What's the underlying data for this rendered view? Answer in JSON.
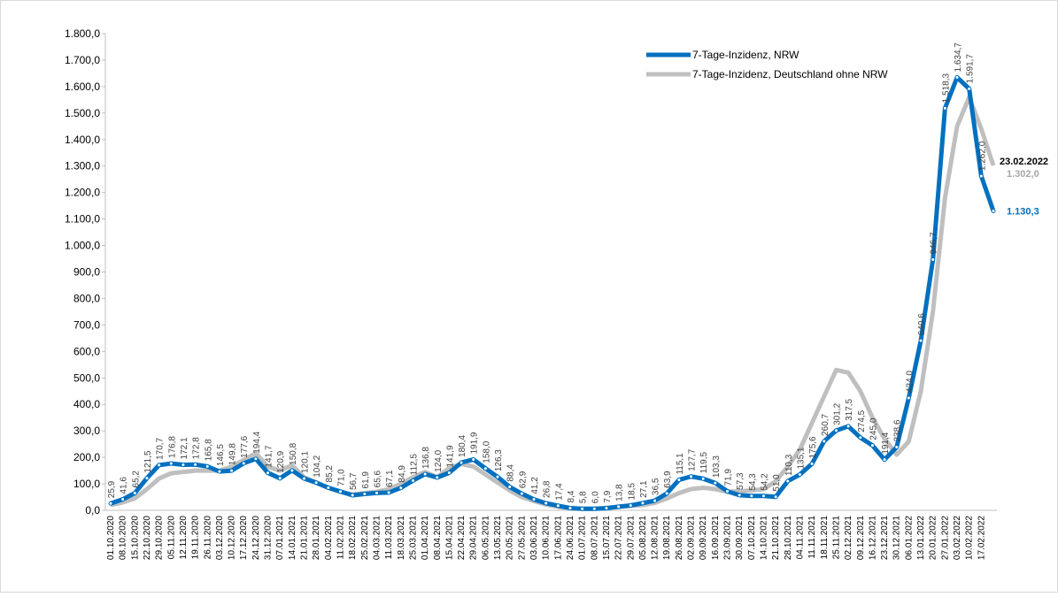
{
  "chart_data": {
    "type": "line",
    "categories": [
      "01.10.2020",
      "08.10.2020",
      "15.10.2020",
      "22.10.2020",
      "29.10.2020",
      "05.11.2020",
      "12.11.2020",
      "19.11.2020",
      "26.11.2020",
      "03.12.2020",
      "10.12.2020",
      "17.12.2020",
      "24.12.2020",
      "31.12.2020",
      "07.01.2021",
      "14.01.2021",
      "21.01.2021",
      "28.01.2021",
      "04.02.2021",
      "11.02.2021",
      "18.02.2021",
      "25.02.2021",
      "04.03.2021",
      "11.03.2021",
      "18.03.2021",
      "25.03.2021",
      "01.04.2021",
      "08.04.2021",
      "15.04.2021",
      "22.04.2021",
      "29.04.2021",
      "06.05.2021",
      "13.05.2021",
      "20.05.2021",
      "27.05.2021",
      "03.06.2021",
      "10.06.2021",
      "17.06.2021",
      "24.06.2021",
      "01.07.2021",
      "08.07.2021",
      "15.07.2021",
      "22.07.2021",
      "29.07.2021",
      "05.08.2021",
      "12.08.2021",
      "19.08.2021",
      "26.08.2021",
      "02.09.2021",
      "09.09.2021",
      "16.09.2021",
      "23.09.2021",
      "30.09.2021",
      "07.10.2021",
      "14.10.2021",
      "21.10.2021",
      "28.10.2021",
      "04.11.2021",
      "11.11.2021",
      "18.11.2021",
      "25.11.2021",
      "02.12.2021",
      "09.12.2021",
      "16.12.2021",
      "23.12.2021",
      "30.12.2021",
      "06.01.2022",
      "13.01.2022",
      "20.01.2022",
      "27.01.2022",
      "03.02.2022",
      "10.02.2022",
      "17.02.2022",
      null
    ],
    "series": [
      {
        "name": "7-Tage-Inzidenz, NRW",
        "color": "#0070c0",
        "values": [
          25.9,
          41.6,
          65.2,
          121.5,
          170.7,
          176.8,
          172.1,
          172.8,
          165.8,
          146.5,
          149.8,
          177.6,
          194.4,
          141.7,
          120.9,
          150.8,
          120.1,
          104.2,
          85.2,
          71.0,
          56.7,
          61.9,
          65.6,
          67.1,
          84.9,
          112.5,
          136.8,
          124.0,
          141.9,
          180.4,
          191.9,
          158.0,
          126.3,
          88.4,
          62.9,
          41.2,
          26.8,
          17.4,
          8.4,
          5.8,
          6.0,
          7.9,
          13.8,
          18.5,
          27.1,
          36.5,
          63.9,
          115.1,
          127.7,
          119.5,
          103.3,
          71.9,
          57.3,
          54.3,
          54.2,
          51.0,
          110.3,
          135.1,
          175.6,
          260.7,
          301.2,
          317.5,
          274.5,
          245.0,
          191.4,
          238.6,
          424.0,
          640.6,
          946.7,
          1518.3,
          1634.7,
          1591.7,
          1262.0,
          1130.3
        ],
        "value_labels": [
          "25,9",
          "41,6",
          "65,2",
          "121,5",
          "170,7",
          "176,8",
          "172,1",
          "172,8",
          "165,8",
          "146,5",
          "149,8",
          "177,6",
          "194,4",
          "141,7",
          "120,9",
          "150,8",
          "120,1",
          "104,2",
          "85,2",
          "71,0",
          "56,7",
          "61,9",
          "65,6",
          "67,1",
          "84,9",
          "112,5",
          "136,8",
          "124,0",
          "141,9",
          "180,4",
          "191,9",
          "158,0",
          "126,3",
          "88,4",
          "62,9",
          "41,2",
          "26,8",
          "17,4",
          "8,4",
          "5,8",
          "6,0",
          "7,9",
          "13,8",
          "18,5",
          "27,1",
          "36,5",
          "63,9",
          "115,1",
          "127,7",
          "119,5",
          "103,3",
          "71,9",
          "57,3",
          "54,3",
          "54,2",
          "51,0",
          "110,3",
          "135,1",
          "175,6",
          "260,7",
          "301,2",
          "317,5",
          "274,5",
          "245,0",
          "191,4",
          "238,6",
          "424,0",
          "640,6",
          "946,7",
          "1.518,3",
          "1.634,7",
          "1.591,7",
          "1.262,0",
          "1.130,3"
        ]
      },
      {
        "name": "7-Tage-Inzidenz, Deutschland ohne NRW",
        "color": "#bfbfbf",
        "values": [
          20,
          30,
          45,
          80,
          120,
          140,
          145,
          150,
          150,
          150,
          165,
          190,
          215,
          165,
          150,
          170,
          125,
          105,
          85,
          70,
          60,
          65,
          70,
          80,
          100,
          125,
          145,
          125,
          160,
          175,
          165,
          135,
          105,
          75,
          50,
          35,
          22,
          13,
          8,
          6,
          6,
          9,
          13,
          17,
          20,
          28,
          45,
          65,
          80,
          85,
          80,
          70,
          72,
          75,
          80,
          110,
          165,
          230,
          330,
          430,
          530,
          520,
          450,
          350,
          270,
          210,
          260,
          450,
          750,
          1180,
          1450,
          1560,
          1440,
          1302.0
        ],
        "value_labels": [
          null,
          null,
          null,
          null,
          null,
          null,
          null,
          null,
          null,
          null,
          null,
          null,
          null,
          null,
          null,
          null,
          null,
          null,
          null,
          null,
          null,
          null,
          null,
          null,
          null,
          null,
          null,
          null,
          null,
          null,
          null,
          null,
          null,
          null,
          null,
          null,
          null,
          null,
          null,
          null,
          null,
          null,
          null,
          null,
          null,
          null,
          null,
          null,
          null,
          null,
          null,
          null,
          null,
          null,
          null,
          null,
          null,
          null,
          null,
          null,
          null,
          null,
          null,
          null,
          null,
          null,
          null,
          null,
          null,
          null,
          null,
          null,
          null,
          "1.302,0"
        ]
      }
    ],
    "annotation": "23.02.2022",
    "ylim": [
      0,
      1800
    ],
    "yticks": [
      {
        "value": 0,
        "label": "0,0"
      },
      {
        "value": 100,
        "label": "100,0"
      },
      {
        "value": 200,
        "label": "200,0"
      },
      {
        "value": 300,
        "label": "300,0"
      },
      {
        "value": 400,
        "label": "400,0"
      },
      {
        "value": 500,
        "label": "500,0"
      },
      {
        "value": 600,
        "label": "600,0"
      },
      {
        "value": 700,
        "label": "700,0"
      },
      {
        "value": 800,
        "label": "800,0"
      },
      {
        "value": 900,
        "label": "900,0"
      },
      {
        "value": 1000,
        "label": "1.000,0"
      },
      {
        "value": 1100,
        "label": "1.100,0"
      },
      {
        "value": 1200,
        "label": "1.200,0"
      },
      {
        "value": 1300,
        "label": "1.300,0"
      },
      {
        "value": 1400,
        "label": "1.400,0"
      },
      {
        "value": 1500,
        "label": "1.500,0"
      },
      {
        "value": 1600,
        "label": "1.600,0"
      },
      {
        "value": 1700,
        "label": "1.700,0"
      },
      {
        "value": 1800,
        "label": "1.800,0"
      }
    ],
    "grid": false,
    "legend": "top-right"
  }
}
